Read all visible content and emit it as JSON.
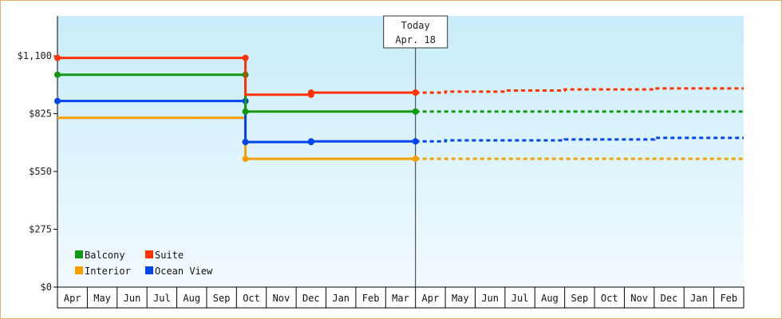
{
  "chart_data": {
    "type": "line",
    "step": true,
    "title": "",
    "xlabel": "",
    "ylabel": "",
    "ylim": [
      0,
      1100
    ],
    "y_ticks": [
      {
        "value": 0,
        "label": "$0"
      },
      {
        "value": 275,
        "label": "$275"
      },
      {
        "value": 550,
        "label": "$550"
      },
      {
        "value": 825,
        "label": "$825"
      },
      {
        "value": 1100,
        "label": "$1,100"
      }
    ],
    "months": [
      "Apr",
      "May",
      "Jun",
      "Jul",
      "Aug",
      "Sep",
      "Oct",
      "Nov",
      "Dec",
      "Jan",
      "Feb",
      "Mar",
      "Apr",
      "May",
      "Jun",
      "Jul",
      "Aug",
      "Sep",
      "Oct",
      "Nov",
      "Dec",
      "Jan",
      "Feb"
    ],
    "today": {
      "label_line1": "Today",
      "label_line2": "Apr. 18",
      "month_index": 12.0
    },
    "legend_position": "bottom-left",
    "background_gradient": [
      "#c8ecfa",
      "#f2fafe"
    ],
    "series": [
      {
        "name": "Balcony",
        "color": "#119911",
        "actual": [
          [
            0,
            1010
          ],
          [
            6.3,
            1010
          ],
          [
            6.3,
            835
          ],
          [
            12.0,
            835
          ]
        ],
        "markers": [
          [
            0,
            1010
          ],
          [
            6.3,
            1010
          ],
          [
            6.3,
            835
          ],
          [
            12.0,
            835
          ]
        ],
        "forecast": [
          [
            12.0,
            835
          ],
          [
            23.0,
            835
          ]
        ]
      },
      {
        "name": "Suite",
        "color": "#ff3300",
        "actual": [
          [
            0,
            1090
          ],
          [
            6.3,
            1090
          ],
          [
            6.3,
            915
          ],
          [
            8.5,
            915
          ],
          [
            8.5,
            925
          ],
          [
            12.0,
            925
          ]
        ],
        "markers": [
          [
            0,
            1090
          ],
          [
            6.3,
            1090
          ],
          [
            8.5,
            915
          ],
          [
            8.5,
            925
          ],
          [
            12.0,
            925
          ]
        ],
        "forecast": [
          [
            12.0,
            925
          ],
          [
            13.0,
            925
          ],
          [
            13.0,
            930
          ],
          [
            15.0,
            930
          ],
          [
            15.0,
            935
          ],
          [
            17.0,
            935
          ],
          [
            17.0,
            940
          ],
          [
            20.0,
            940
          ],
          [
            20.0,
            945
          ],
          [
            23.0,
            945
          ]
        ]
      },
      {
        "name": "Interior",
        "color": "#f5a000",
        "actual": [
          [
            0,
            805
          ],
          [
            6.3,
            805
          ],
          [
            6.3,
            610
          ],
          [
            12.0,
            610
          ]
        ],
        "markers": [
          [
            6.3,
            610
          ],
          [
            12.0,
            610
          ]
        ],
        "forecast": [
          [
            12.0,
            610
          ],
          [
            23.0,
            610
          ]
        ]
      },
      {
        "name": "Ocean View",
        "color": "#0044ee",
        "actual": [
          [
            0,
            885
          ],
          [
            6.3,
            885
          ],
          [
            6.3,
            690
          ],
          [
            8.5,
            690
          ],
          [
            8.5,
            693
          ],
          [
            12.0,
            693
          ]
        ],
        "markers": [
          [
            0,
            885
          ],
          [
            6.3,
            885
          ],
          [
            6.3,
            690
          ],
          [
            8.5,
            690
          ],
          [
            8.5,
            693
          ],
          [
            12.0,
            693
          ]
        ],
        "forecast": [
          [
            12.0,
            693
          ],
          [
            13.0,
            693
          ],
          [
            13.0,
            698
          ],
          [
            17.0,
            698
          ],
          [
            17.0,
            702
          ],
          [
            20.0,
            702
          ],
          [
            20.0,
            710
          ],
          [
            23.0,
            710
          ]
        ]
      }
    ]
  }
}
